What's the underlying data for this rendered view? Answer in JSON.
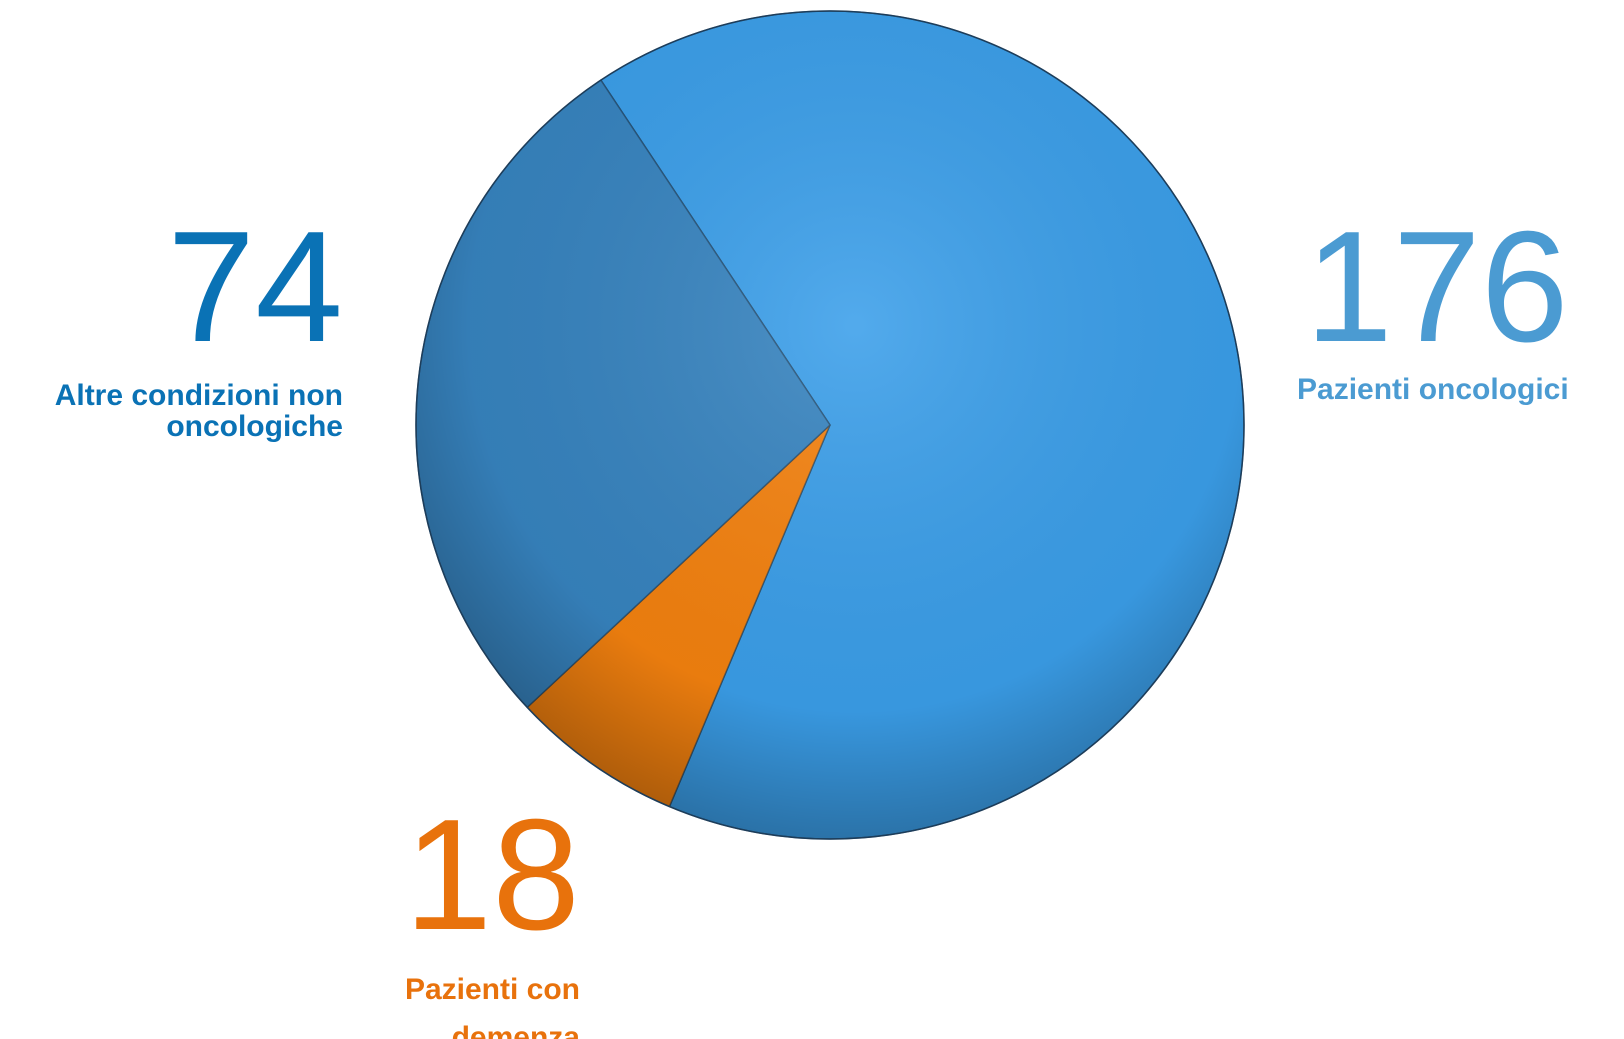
{
  "chart_data": {
    "type": "pie",
    "categories": [
      "Pazienti oncologici",
      "Pazienti con demenza",
      "Altre condizioni non oncologiche"
    ],
    "values": [
      176,
      18,
      74
    ],
    "colors": [
      "#3b9fea",
      "#f5820f",
      "#3784c0"
    ],
    "label_colors": [
      "#4b9bd2",
      "#e8720c",
      "#0a72b5"
    ]
  }
}
